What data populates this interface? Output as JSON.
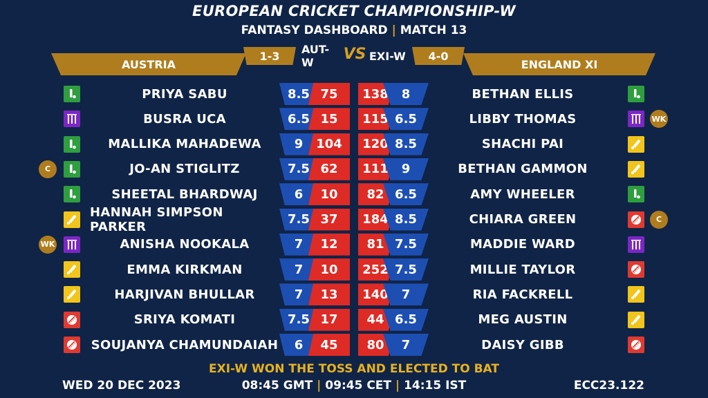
{
  "title": "EUROPEAN CRICKET CHAMPIONSHIP-W",
  "subtitle_left": "FANTASY DASHBOARD",
  "subtitle_sep": "|",
  "subtitle_right": "MATCH 13",
  "vs_label": "VS",
  "teams": {
    "left": {
      "name": "AUSTRIA",
      "code": "AUT-W",
      "record": "1-3"
    },
    "right": {
      "name": "ENGLAND XI",
      "code": "EXI-W",
      "record": "4-0"
    }
  },
  "role_colors": {
    "bat": "#f1c51b",
    "bowl": "#df3a31",
    "allrounder": "#2e9e3f",
    "wk": "#7c27c4"
  },
  "players_left": [
    {
      "name": "PRIYA SABU",
      "credits": "8.5",
      "points": "75",
      "role": "allrounder-icon",
      "tag": ""
    },
    {
      "name": "BUSRA UCA",
      "credits": "6.5",
      "points": "15",
      "role": "wicketkeeper-icon",
      "tag": ""
    },
    {
      "name": "MALLIKA MAHADEWA",
      "credits": "9",
      "points": "104",
      "role": "allrounder-icon",
      "tag": ""
    },
    {
      "name": "JO-AN STIGLITZ",
      "credits": "7.5",
      "points": "62",
      "role": "allrounder-icon",
      "tag": "C"
    },
    {
      "name": "SHEETAL BHARDWAJ",
      "credits": "6",
      "points": "10",
      "role": "allrounder-icon",
      "tag": ""
    },
    {
      "name": "HANNAH SIMPSON PARKER",
      "credits": "7.5",
      "points": "37",
      "role": "batter-icon",
      "tag": ""
    },
    {
      "name": "ANISHA NOOKALA",
      "credits": "7",
      "points": "12",
      "role": "wicketkeeper-icon",
      "tag": "WK"
    },
    {
      "name": "EMMA KIRKMAN",
      "credits": "7",
      "points": "10",
      "role": "batter-icon",
      "tag": ""
    },
    {
      "name": "HARJIVAN BHULLAR",
      "credits": "7",
      "points": "13",
      "role": "batter-icon",
      "tag": ""
    },
    {
      "name": "SRIYA KOMATI",
      "credits": "7.5",
      "points": "17",
      "role": "bowler-icon",
      "tag": ""
    },
    {
      "name": "SOUJANYA CHAMUNDAIAH",
      "credits": "6",
      "points": "45",
      "role": "bowler-icon",
      "tag": ""
    }
  ],
  "players_right": [
    {
      "name": "BETHAN ELLIS",
      "points": "138",
      "credits": "8",
      "role": "allrounder-icon",
      "tag": ""
    },
    {
      "name": "LIBBY THOMAS",
      "points": "115",
      "credits": "6.5",
      "role": "wicketkeeper-icon",
      "tag": "WK"
    },
    {
      "name": "SHACHI PAI",
      "points": "120",
      "credits": "8.5",
      "role": "batter-icon",
      "tag": ""
    },
    {
      "name": "BETHAN GAMMON",
      "points": "111",
      "credits": "9",
      "role": "batter-icon",
      "tag": ""
    },
    {
      "name": "AMY WHEELER",
      "points": "82",
      "credits": "6.5",
      "role": "allrounder-icon",
      "tag": ""
    },
    {
      "name": "CHIARA GREEN",
      "points": "184",
      "credits": "8.5",
      "role": "bowler-icon",
      "tag": "C"
    },
    {
      "name": "MADDIE WARD",
      "points": "81",
      "credits": "7.5",
      "role": "wicketkeeper-icon",
      "tag": ""
    },
    {
      "name": "MILLIE TAYLOR",
      "points": "252",
      "credits": "7.5",
      "role": "bowler-icon",
      "tag": ""
    },
    {
      "name": "RIA FACKRELL",
      "points": "140",
      "credits": "7",
      "role": "batter-icon",
      "tag": ""
    },
    {
      "name": "MEG AUSTIN",
      "points": "44",
      "credits": "6.5",
      "role": "batter-icon",
      "tag": ""
    },
    {
      "name": "DAISY GIBB",
      "points": "80",
      "credits": "7",
      "role": "bowler-icon",
      "tag": ""
    }
  ],
  "toss": "EXI-W WON THE TOSS AND ELECTED TO BAT",
  "footer": {
    "date": "WED 20 DEC 2023",
    "time_gmt": "08:45 GMT",
    "time_cet": "09:45 CET",
    "time_ist": "14:15 IST",
    "sep": "|",
    "match_code": "ECC23.122"
  }
}
